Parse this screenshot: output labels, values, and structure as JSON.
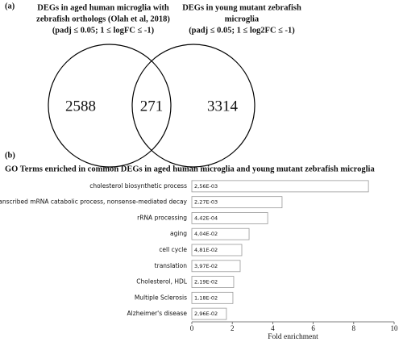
{
  "chart_data": [
    {
      "type": "venn",
      "panel": "(a)",
      "sets": [
        {
          "title_lines": [
            "DEGs in aged human microglia with",
            "zebrafish orthologs (Olah et al, 2018)",
            "(padj ≤ 0.05; 1 ≤ logFC ≤ -1)"
          ],
          "value": 2588
        },
        {
          "title_lines": [
            "DEGs in young mutant zebrafish",
            "microglia",
            "(padj ≤ 0.05; 1 ≤ log2FC ≤ -1)"
          ],
          "value": 3314
        }
      ],
      "overlap": 271
    },
    {
      "type": "bar",
      "orientation": "horizontal",
      "panel": "(b)",
      "title": "GO Terms enriched in common DEGs in aged human microglia and young mutant zebrafish microglia",
      "categories": [
        "cholesterol biosynthetic process",
        "nuclear-transcribed mRNA catabolic process, nonsense-mediated decay",
        "rRNA processing",
        "aging",
        "cell cycle",
        "translation",
        "Cholesterol, HDL",
        "Multiple Sclerosis",
        "Alzheimer's disease"
      ],
      "values": [
        8.73,
        4.46,
        3.75,
        2.83,
        2.47,
        2.39,
        2.07,
        2.03,
        1.71
      ],
      "annotations": [
        "2,56E-03",
        "2,27E-03",
        "4,42E-04",
        "4,04E-02",
        "4,81E-02",
        "3,97E-02",
        "2,19E-02",
        "1,18E-02",
        "2,96E-02"
      ],
      "color": "#ffffff",
      "edge_color": "#999999",
      "xlim": [
        0,
        10
      ],
      "xticks": [
        0,
        2,
        4,
        6,
        8,
        10
      ],
      "xlabel": "Fold enrichment"
    }
  ]
}
